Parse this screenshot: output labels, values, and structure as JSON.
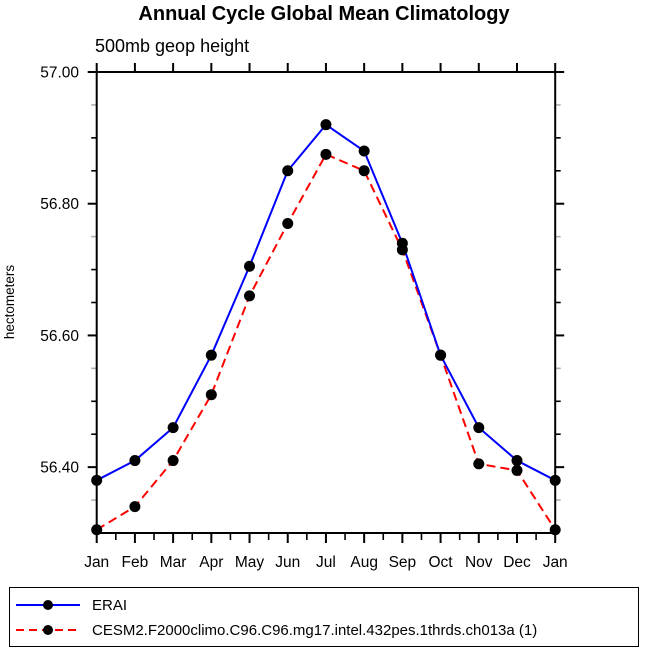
{
  "title": "Annual Cycle Global Mean Climatology",
  "subtitle": "500mb geop height",
  "ylabel": "hectometers",
  "colors": {
    "erai_line": "#0000ff",
    "cesm2_line": "#ff0000",
    "marker": "#000000",
    "axis": "#000000",
    "minor_tick_faded": "#b0b0b0"
  },
  "legend": {
    "entries": [
      {
        "label": "ERAI",
        "color": "#0000ff",
        "style": "solid",
        "marker": "filled-circle"
      },
      {
        "label": "CESM2.F2000climo.C96.C96.mg17.intel.432pes.1thrds.ch013a (1)",
        "color": "#ff0000",
        "style": "dashed",
        "marker": "filled-circle"
      }
    ]
  },
  "chart_data": {
    "type": "line",
    "title": "Annual Cycle Global Mean Climatology",
    "subtitle": "500mb geop height",
    "xlabel": "",
    "ylabel": "hectometers",
    "categories": [
      "Jan",
      "Feb",
      "Mar",
      "Apr",
      "May",
      "Jun",
      "Jul",
      "Aug",
      "Sep",
      "Oct",
      "Nov",
      "Dec",
      "Jan"
    ],
    "series": [
      {
        "name": "ERAI",
        "color": "#0000ff",
        "line_style": "solid",
        "marker": "filled-circle",
        "values": [
          56.38,
          56.41,
          56.46,
          56.57,
          56.705,
          56.85,
          56.92,
          56.88,
          56.74,
          56.57,
          56.46,
          56.41,
          56.38
        ]
      },
      {
        "name": "CESM2.F2000climo.C96.C96.mg17.intel.432pes.1thrds.ch013a (1)",
        "color": "#ff0000",
        "line_style": "dashed",
        "marker": "filled-circle",
        "values": [
          56.305,
          56.34,
          56.41,
          56.51,
          56.66,
          56.77,
          56.875,
          56.85,
          56.73,
          56.57,
          56.405,
          56.395,
          56.305
        ]
      }
    ],
    "ylim": [
      56.3,
      57.0
    ],
    "yticks_major": [
      56.4,
      56.6,
      56.8,
      57.0
    ],
    "ytick_major_step": 0.2,
    "ytick_minor_step": 0.05,
    "ytick_label_format": "0.00",
    "xtick_minor": "half-month",
    "grid": false,
    "legend_position": "bottom"
  }
}
